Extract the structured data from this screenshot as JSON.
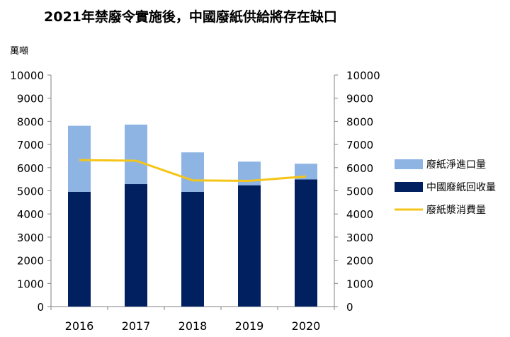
{
  "chart_data": {
    "type": "bar",
    "title": "2021年禁廢令實施後，中國廢紙供給將存在缺口",
    "ylabel": "萬噸",
    "categories": [
      "2016",
      "2017",
      "2018",
      "2019",
      "2020"
    ],
    "ylim": [
      0,
      10000
    ],
    "yticks": [
      "0",
      "1000",
      "2000",
      "3000",
      "4000",
      "5000",
      "6000",
      "7000",
      "8000",
      "9000",
      "10000"
    ],
    "stacked": true,
    "series": [
      {
        "name": "中國廢紙回收量",
        "kind": "bar",
        "color": "#002060",
        "values": [
          4960,
          5290,
          4960,
          5240,
          5490
        ]
      },
      {
        "name": "廢紙淨進口量",
        "kind": "bar",
        "color": "#8EB4E3",
        "values": [
          2850,
          2570,
          1700,
          1020,
          680
        ]
      },
      {
        "name": "廢紙漿消費量",
        "kind": "line",
        "color": "#F5C518",
        "values": [
          6330,
          6300,
          5450,
          5430,
          5620
        ]
      }
    ],
    "legend_order": [
      "廢紙淨進口量",
      "中國廢紙回收量",
      "廢紙漿消費量"
    ],
    "legend_position": "right",
    "secondary_axis": true
  }
}
